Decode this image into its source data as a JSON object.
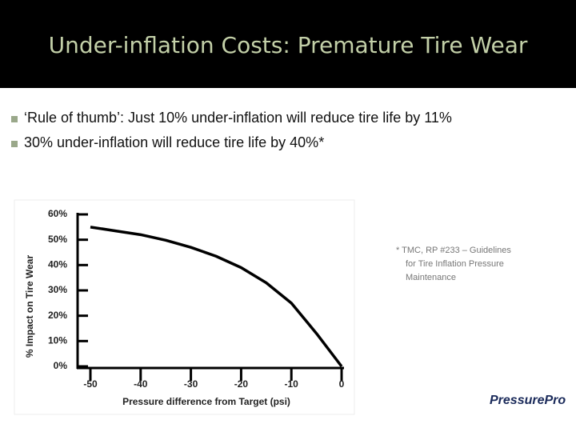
{
  "title": "Under-inflation Costs: Premature Tire Wear",
  "bullets": [
    "‘Rule of thumb’: Just 10% under-inflation will reduce tire life by 11%",
    "30% under-inflation will reduce tire life by 40%*"
  ],
  "footnote": [
    "* TMC, RP #233 – Guidelines",
    "for Tire Inflation Pressure",
    "Maintenance"
  ],
  "logo": "PressurePro",
  "chart_data": {
    "type": "line",
    "x_label": "Pressure difference from Target (psi)",
    "y_label": "% Impact on Tire Wear",
    "x": [
      -50,
      -45,
      -40,
      -35,
      -30,
      -25,
      -20,
      -15,
      -10,
      -5,
      0
    ],
    "values": [
      55,
      53.5,
      52,
      49.8,
      47,
      43.5,
      39,
      33,
      25,
      13,
      0
    ],
    "color": "#000000",
    "xlim": [
      -50,
      0
    ],
    "xticks": [
      -50,
      -40,
      -30,
      -20,
      -10,
      0
    ],
    "ylim": [
      0,
      60
    ],
    "yticks": [
      {
        "value": 0,
        "label": "0%"
      },
      {
        "value": 10,
        "label": "10%"
      },
      {
        "value": 20,
        "label": "20%"
      },
      {
        "value": 30,
        "label": "30%"
      },
      {
        "value": 40,
        "label": "40%"
      },
      {
        "value": 50,
        "label": "50%"
      },
      {
        "value": 60,
        "label": "60%"
      }
    ]
  }
}
